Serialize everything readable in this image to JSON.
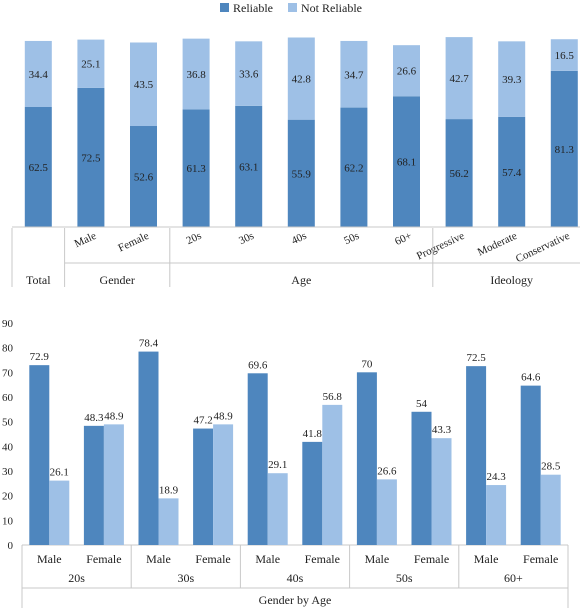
{
  "colors": {
    "reliable": "#4e86be",
    "not_reliable": "#9ec0e6",
    "axis": "#c8c8c8",
    "text": "#222222"
  },
  "chart_data": [
    {
      "type": "bar",
      "stacked": true,
      "legend": [
        "Reliable",
        "Not Reliable"
      ],
      "legend_position": "top-center",
      "categories": [
        "Total",
        "Male",
        "Female",
        "20s",
        "30s",
        "40s",
        "50s",
        "60+",
        "Progressive",
        "Moderate",
        "Conservative"
      ],
      "category_labels": [
        "",
        "Male",
        "Female",
        "20s",
        "30s",
        "40s",
        "50s",
        "60+",
        "Progressive",
        "Moderate",
        "Conservative"
      ],
      "groups": [
        {
          "label": "Total",
          "span": 1
        },
        {
          "label": "Gender",
          "span": 2
        },
        {
          "label": "Age",
          "span": 5
        },
        {
          "label": "Ideology",
          "span": 3
        }
      ],
      "series": [
        {
          "name": "Reliable",
          "values": [
            62.5,
            72.5,
            52.6,
            61.3,
            63.1,
            55.9,
            62.2,
            68.1,
            56.2,
            57.4,
            81.3
          ]
        },
        {
          "name": "Not Reliable",
          "values": [
            34.4,
            25.1,
            43.5,
            36.8,
            33.6,
            42.8,
            34.7,
            26.6,
            42.7,
            39.3,
            16.5
          ]
        }
      ],
      "ylim": [
        0,
        100
      ],
      "grid": false
    },
    {
      "type": "bar",
      "stacked": false,
      "categories": [
        "Male",
        "Female",
        "Male",
        "Female",
        "Male",
        "Female",
        "Male",
        "Female",
        "Male",
        "Female"
      ],
      "groups": [
        {
          "label": "20s",
          "span": 2
        },
        {
          "label": "30s",
          "span": 2
        },
        {
          "label": "40s",
          "span": 2
        },
        {
          "label": "50s",
          "span": 2
        },
        {
          "label": "60+",
          "span": 2
        }
      ],
      "xlabel": "Gender by Age",
      "series": [
        {
          "name": "Reliable",
          "values": [
            72.9,
            48.3,
            78.4,
            47.2,
            69.6,
            41.8,
            70,
            54,
            72.5,
            64.6
          ]
        },
        {
          "name": "Not Reliable",
          "values": [
            26.1,
            48.9,
            18.9,
            48.9,
            29.1,
            56.8,
            26.6,
            43.3,
            24.3,
            28.5
          ]
        }
      ],
      "ylim": [
        0,
        90
      ],
      "yticks": [
        0,
        10,
        20,
        30,
        40,
        50,
        60,
        70,
        80,
        90
      ],
      "grid": false
    }
  ]
}
